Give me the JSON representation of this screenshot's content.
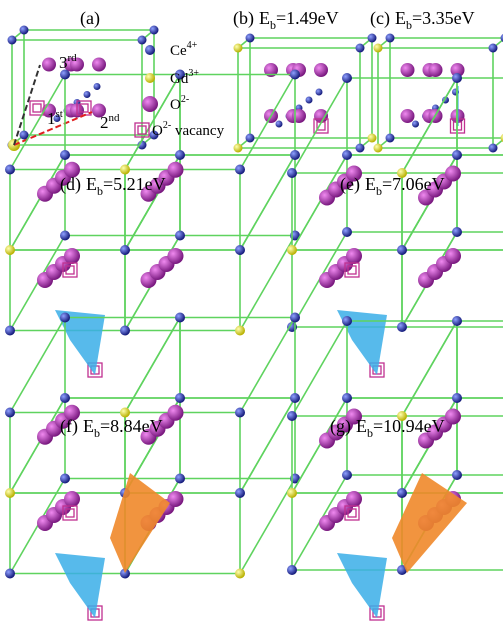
{
  "panels": [
    {
      "label": "(a)"
    },
    {
      "label": "(b)",
      "symbol": "E",
      "subscript": "b",
      "energy": "=1.49eV"
    },
    {
      "label": "(c)",
      "symbol": "E",
      "subscript": "b",
      "energy": "=3.35eV"
    },
    {
      "label": "(d)",
      "symbol": "E",
      "subscript": "b",
      "energy": "=5.21eV"
    },
    {
      "label": "(e)",
      "symbol": "E",
      "subscript": "b",
      "energy": "=7.06eV"
    },
    {
      "label": "(f)",
      "symbol": "E",
      "subscript": "b",
      "energy": "=8.84eV"
    },
    {
      "label": "(g)",
      "symbol": "E",
      "subscript": "b",
      "energy": "=10.94eV"
    }
  ],
  "legend": [
    {
      "ion": "Ce",
      "charge": "4+"
    },
    {
      "ion": "Gd",
      "charge": "3+"
    },
    {
      "ion": "O",
      "charge": "2-"
    },
    {
      "ion": "O",
      "charge": "2-",
      "suffix": " vacancy"
    }
  ],
  "neighbors": [
    {
      "number": "1",
      "suffix": "st"
    },
    {
      "number": "2",
      "suffix": "nd"
    },
    {
      "number": "3",
      "suffix": "rd"
    }
  ]
}
